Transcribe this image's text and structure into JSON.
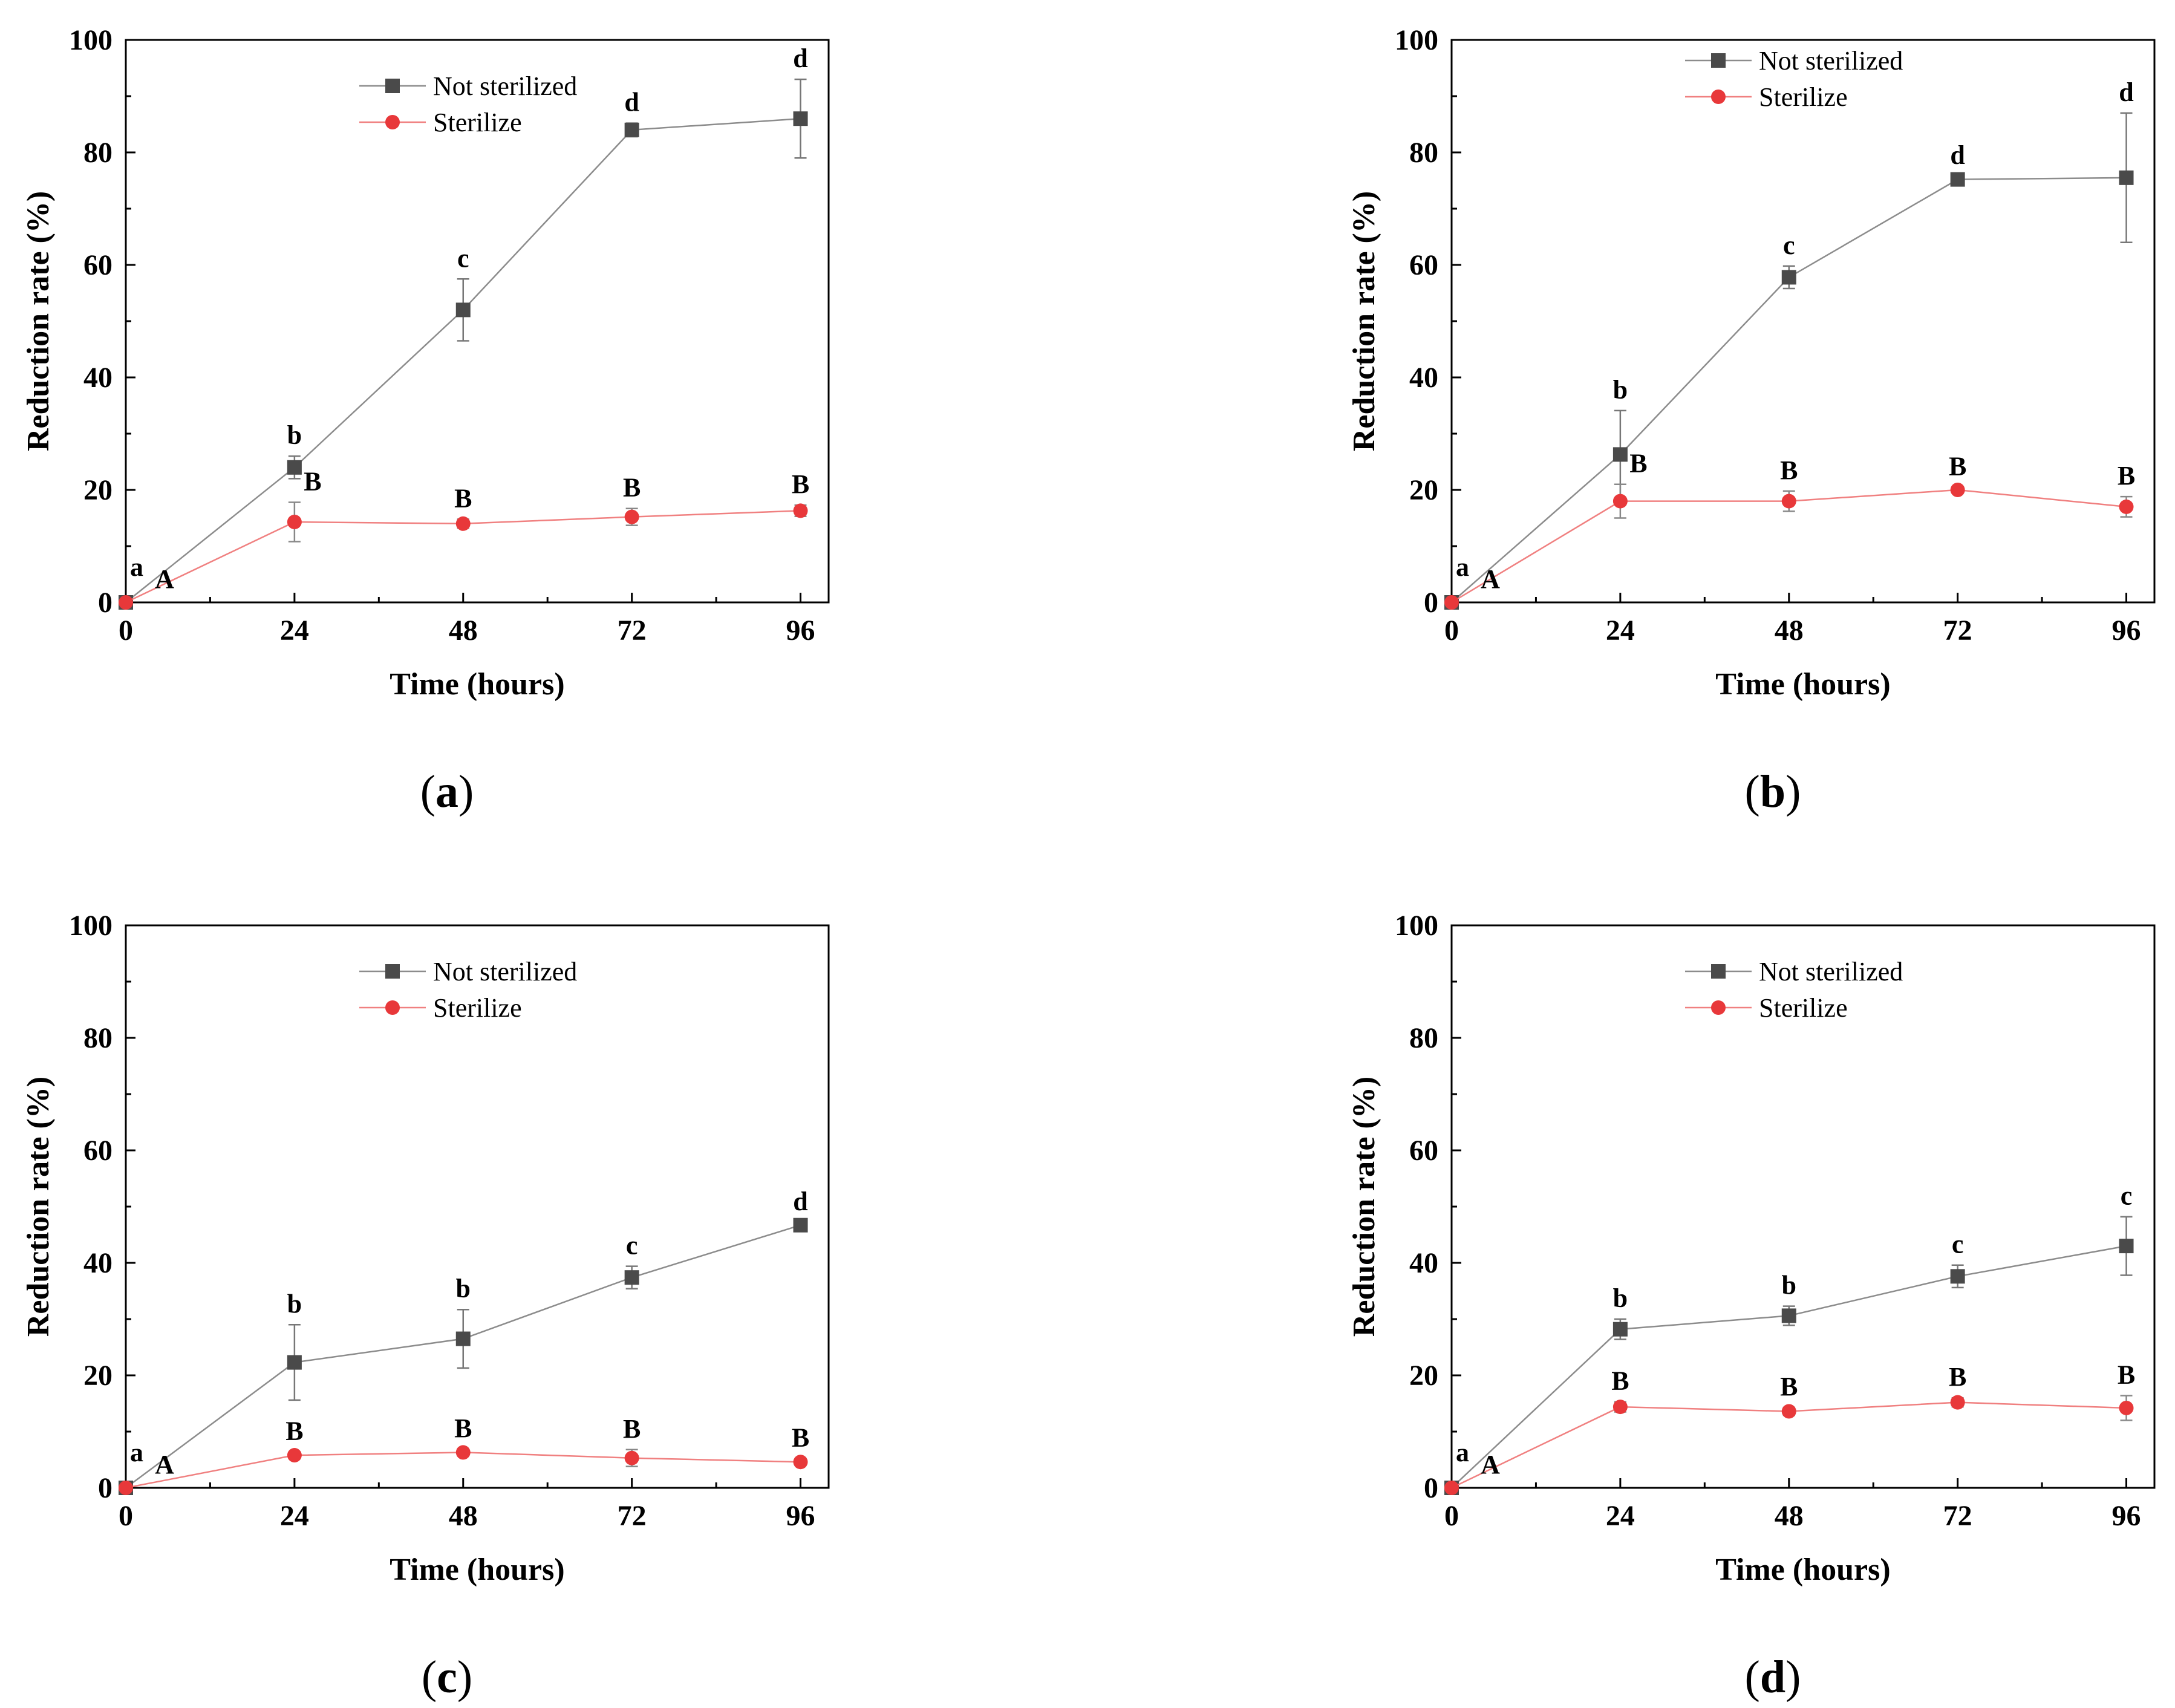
{
  "colors": {
    "not_sterilized": "#4a4a4a",
    "not_sterilized_line": "#8c8c8c",
    "sterilize": "#e8383a",
    "sterilize_line": "#f08080",
    "axis": "#000000"
  },
  "chart_data": [
    {
      "type": "line",
      "panel_label": "a",
      "caption_open": "(",
      "caption_close": ")",
      "xlabel": "Time (hours)",
      "ylabel": "Reduction rate (%)",
      "xlim": [
        0,
        100
      ],
      "ylim": [
        0,
        100
      ],
      "x_ticks": [
        0,
        24,
        48,
        72,
        96
      ],
      "y_ticks": [
        0,
        20,
        40,
        60,
        80,
        100
      ],
      "legend_position": "top-center",
      "series": [
        {
          "name": "Not sterilized",
          "marker": "square",
          "x": [
            0,
            24,
            48,
            72,
            96
          ],
          "values": [
            0,
            24.0,
            52.0,
            84.0,
            86.0
          ],
          "errors": [
            0,
            2.0,
            5.5,
            1.2,
            7.0
          ],
          "letters": [
            "a",
            "b",
            "c",
            "d",
            "d"
          ]
        },
        {
          "name": "Sterilize",
          "marker": "circle",
          "x": [
            0,
            24,
            48,
            72,
            96
          ],
          "values": [
            0,
            14.3,
            14.0,
            15.2,
            16.3
          ],
          "errors": [
            0,
            3.5,
            0.8,
            1.5,
            1.0
          ],
          "letters": [
            "A",
            "B",
            "B",
            "B",
            "B"
          ]
        }
      ]
    },
    {
      "type": "line",
      "panel_label": "b",
      "caption_open": "(",
      "caption_close": ")",
      "xlabel": "Time (hours)",
      "ylabel": "Reduction rate (%)",
      "xlim": [
        0,
        100
      ],
      "ylim": [
        0,
        100
      ],
      "x_ticks": [
        0,
        24,
        48,
        72,
        96
      ],
      "y_ticks": [
        0,
        20,
        40,
        60,
        80,
        100
      ],
      "legend_position": "top-center",
      "series": [
        {
          "name": "Not sterilized",
          "marker": "square",
          "x": [
            0,
            24,
            48,
            72,
            96
          ],
          "values": [
            0,
            26.3,
            57.8,
            75.2,
            75.5
          ],
          "errors": [
            0,
            7.8,
            2.0,
            0.6,
            11.5
          ],
          "letters": [
            "a",
            "b",
            "c",
            "d",
            "d"
          ]
        },
        {
          "name": "Sterilize",
          "marker": "circle",
          "x": [
            0,
            24,
            48,
            72,
            96
          ],
          "values": [
            0,
            18.0,
            18.0,
            20.0,
            17.0
          ],
          "errors": [
            0,
            3.0,
            1.8,
            0.5,
            1.8
          ],
          "letters": [
            "A",
            "B",
            "B",
            "B",
            "B"
          ]
        }
      ]
    },
    {
      "type": "line",
      "panel_label": "c",
      "caption_open": "(",
      "caption_close": ")",
      "xlabel": "Time (hours)",
      "ylabel": "Reduction rate (%)",
      "xlim": [
        0,
        100
      ],
      "ylim": [
        0,
        100
      ],
      "x_ticks": [
        0,
        24,
        48,
        72,
        96
      ],
      "y_ticks": [
        0,
        20,
        40,
        60,
        80,
        100
      ],
      "legend_position": "top-center",
      "series": [
        {
          "name": "Not sterilized",
          "marker": "square",
          "x": [
            0,
            24,
            48,
            72,
            96
          ],
          "values": [
            0,
            22.3,
            26.5,
            37.4,
            46.7
          ],
          "errors": [
            0,
            6.7,
            5.2,
            2.0,
            0.5
          ],
          "letters": [
            "a",
            "b",
            "b",
            "c",
            "d"
          ]
        },
        {
          "name": "Sterilize",
          "marker": "circle",
          "x": [
            0,
            24,
            48,
            72,
            96
          ],
          "values": [
            0,
            5.8,
            6.3,
            5.3,
            4.6
          ],
          "errors": [
            0,
            0.6,
            0.6,
            1.5,
            0.6
          ],
          "letters": [
            "A",
            "B",
            "B",
            "B",
            "B"
          ]
        }
      ]
    },
    {
      "type": "line",
      "panel_label": "d",
      "caption_open": "(",
      "caption_close": ")",
      "xlabel": "Time (hours)",
      "ylabel": "Reduction rate (%)",
      "xlim": [
        0,
        100
      ],
      "ylim": [
        0,
        100
      ],
      "x_ticks": [
        0,
        24,
        48,
        72,
        96
      ],
      "y_ticks": [
        0,
        20,
        40,
        60,
        80,
        100
      ],
      "legend_position": "top-center",
      "series": [
        {
          "name": "Not sterilized",
          "marker": "square",
          "x": [
            0,
            24,
            48,
            72,
            96
          ],
          "values": [
            0,
            28.2,
            30.6,
            37.6,
            43.0
          ],
          "errors": [
            0,
            1.8,
            1.7,
            2.0,
            5.2
          ],
          "letters": [
            "a",
            "b",
            "b",
            "c",
            "c"
          ]
        },
        {
          "name": "Sterilize",
          "marker": "circle",
          "x": [
            0,
            24,
            48,
            72,
            96
          ],
          "values": [
            0,
            14.4,
            13.6,
            15.2,
            14.2
          ],
          "errors": [
            0,
            0.9,
            0.7,
            0.8,
            2.2
          ],
          "letters": [
            "A",
            "B",
            "B",
            "B",
            "B"
          ]
        }
      ]
    }
  ]
}
